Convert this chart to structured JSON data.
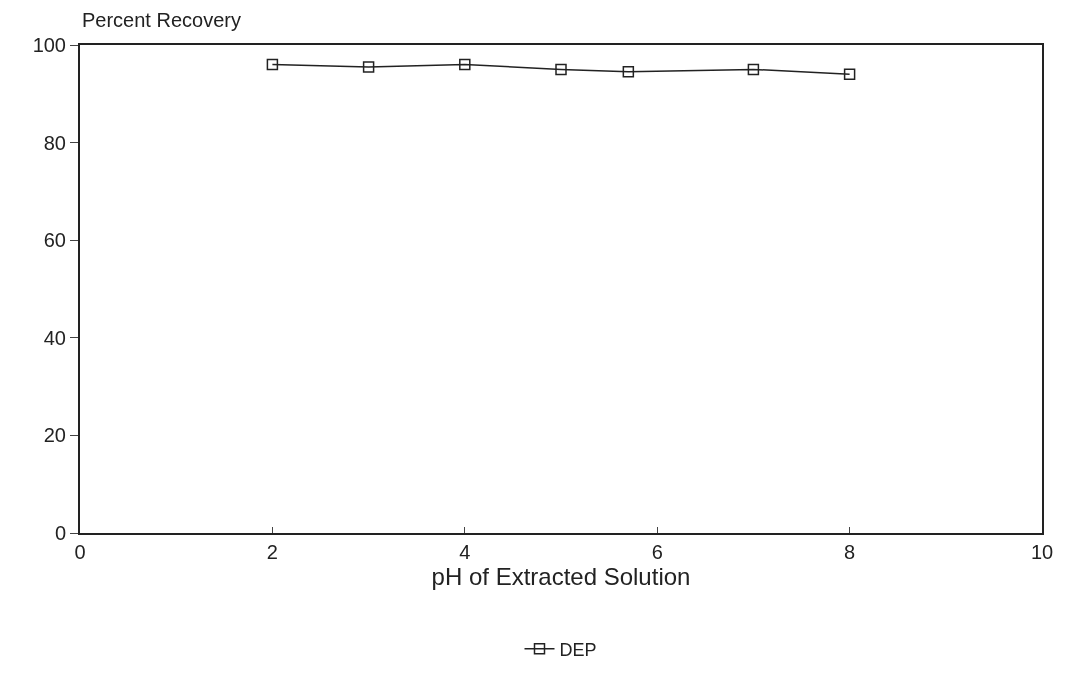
{
  "chart_data": {
    "type": "line",
    "ylabel": "Percent Recovery",
    "xlabel": "pH of Extracted Solution",
    "x": [
      2,
      3,
      4,
      5,
      5.7,
      7,
      8
    ],
    "series": [
      {
        "name": "DEP",
        "color": "#222222",
        "values": [
          96,
          95.5,
          96,
          95,
          94.5,
          95,
          94
        ]
      }
    ],
    "xlim": [
      0,
      10
    ],
    "xticks": [
      0,
      2,
      4,
      6,
      8,
      10
    ],
    "ylim": [
      0,
      100
    ],
    "yticks": [
      0,
      20,
      40,
      60,
      80,
      100
    ],
    "legend": "bottom",
    "marker": "square",
    "line_style": "solid"
  }
}
